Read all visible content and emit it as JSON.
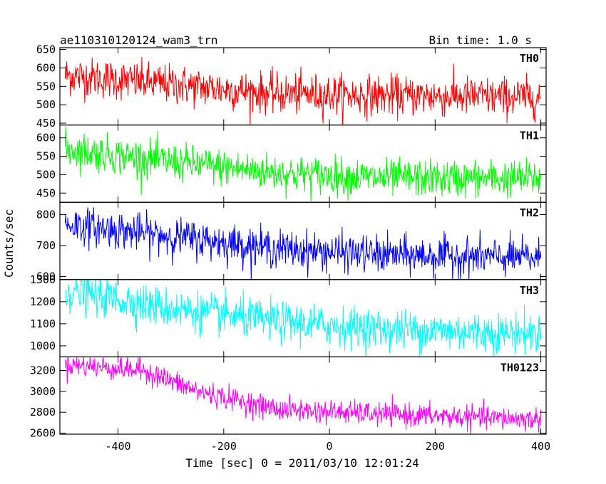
{
  "chart_data": {
    "type": "line",
    "title_left": "ae110310120124_wam3_trn",
    "title_right": "Bin time: 1.0 s",
    "xlabel": "Time [sec] 0 = 2011/03/10 12:01:24",
    "ylabel": "Counts/sec",
    "xlim": [
      -510,
      410
    ],
    "x_ticks": [
      -400,
      -200,
      0,
      200,
      400
    ],
    "x_range": [
      -500,
      400
    ],
    "series": [
      {
        "name": "TH0",
        "color": "#ff0000",
        "ylim": [
          445,
          655
        ],
        "y_ticks": [
          450,
          500,
          550,
          600,
          650
        ],
        "trend": [
          [
            -500,
            580
          ],
          [
            -300,
            555
          ],
          [
            -100,
            530
          ],
          [
            100,
            525
          ],
          [
            400,
            520
          ]
        ],
        "noise": 27
      },
      {
        "name": "TH1",
        "color": "#00ff00",
        "ylim": [
          425,
          635
        ],
        "y_ticks": [
          450,
          500,
          550,
          600
        ],
        "trend": [
          [
            -500,
            570
          ],
          [
            -300,
            535
          ],
          [
            -100,
            505
          ],
          [
            100,
            490
          ],
          [
            400,
            490
          ]
        ],
        "noise": 25
      },
      {
        "name": "TH2",
        "color": "#0000ff",
        "ylim": [
          590,
          840
        ],
        "y_ticks": [
          600,
          700,
          800
        ],
        "trend": [
          [
            -500,
            770
          ],
          [
            -300,
            730
          ],
          [
            -100,
            690
          ],
          [
            100,
            670
          ],
          [
            400,
            660
          ]
        ],
        "noise": 30
      },
      {
        "name": "TH3",
        "color": "#00ffff",
        "ylim": [
          950,
          1300
        ],
        "y_ticks": [
          1000,
          1100,
          1200,
          1300
        ],
        "trend": [
          [
            -500,
            1250
          ],
          [
            -300,
            1170
          ],
          [
            -100,
            1110
          ],
          [
            100,
            1075
          ],
          [
            400,
            1055
          ]
        ],
        "noise": 45
      },
      {
        "name": "TH0123",
        "color": "#ff00ff",
        "ylim": [
          2590,
          3330
        ],
        "y_ticks": [
          2600,
          2800,
          3000,
          3200
        ],
        "trend": [
          [
            -500,
            3260
          ],
          [
            -350,
            3200
          ],
          [
            -250,
            3000
          ],
          [
            -100,
            2830
          ],
          [
            100,
            2780
          ],
          [
            400,
            2730
          ]
        ],
        "noise": 55
      }
    ]
  }
}
